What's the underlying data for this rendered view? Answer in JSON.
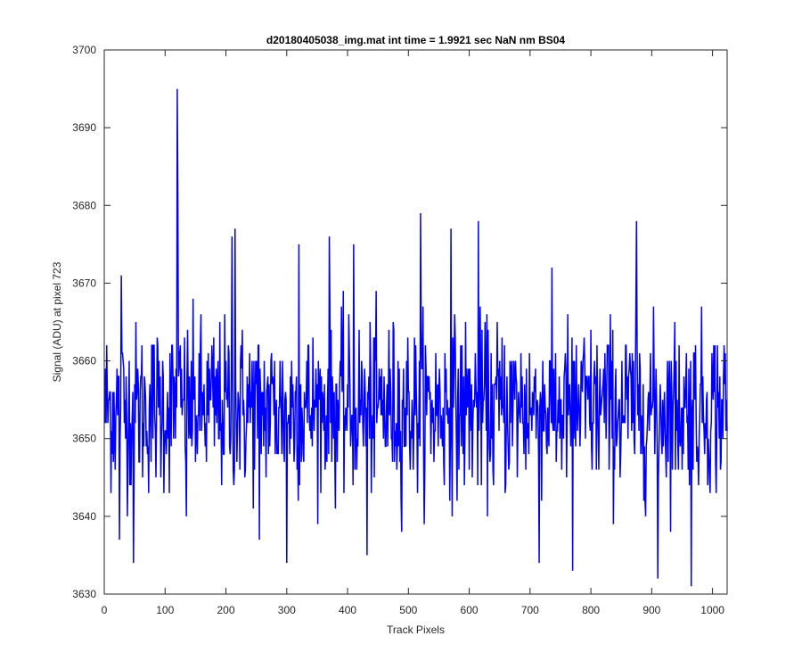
{
  "chart_data": {
    "type": "line",
    "title": "d20180405038_img.mat int time = 1.9921 sec  NaN nm BS04",
    "xlabel": "Track Pixels",
    "ylabel": "Signal (ADU) at pixel 723",
    "xlim": [
      0,
      1024
    ],
    "ylim": [
      3630,
      3700
    ],
    "xticks": [
      0,
      100,
      200,
      300,
      400,
      500,
      600,
      700,
      800,
      900,
      1000
    ],
    "yticks": [
      3630,
      3640,
      3650,
      3660,
      3670,
      3680,
      3690,
      3700
    ],
    "grid": false,
    "series": [
      {
        "color": "#0000ff",
        "x_start": 1,
        "x_step": 1,
        "n_points": 1024,
        "mean": 3654,
        "std": 5.5,
        "min": 3631,
        "max": 3695,
        "notable_points": [
          {
            "x": 25,
            "y": 3637
          },
          {
            "x": 28,
            "y": 3671
          },
          {
            "x": 48,
            "y": 3634
          },
          {
            "x": 120,
            "y": 3695
          },
          {
            "x": 121,
            "y": 3681
          },
          {
            "x": 135,
            "y": 3640
          },
          {
            "x": 210,
            "y": 3676
          },
          {
            "x": 215,
            "y": 3677
          },
          {
            "x": 255,
            "y": 3637
          },
          {
            "x": 300,
            "y": 3634
          },
          {
            "x": 320,
            "y": 3675
          },
          {
            "x": 370,
            "y": 3676
          },
          {
            "x": 410,
            "y": 3675
          },
          {
            "x": 432,
            "y": 3635
          },
          {
            "x": 520,
            "y": 3679
          },
          {
            "x": 570,
            "y": 3677
          },
          {
            "x": 615,
            "y": 3678
          },
          {
            "x": 715,
            "y": 3634
          },
          {
            "x": 770,
            "y": 3633
          },
          {
            "x": 875,
            "y": 3678
          },
          {
            "x": 910,
            "y": 3632
          },
          {
            "x": 965,
            "y": 3631
          }
        ]
      }
    ]
  }
}
